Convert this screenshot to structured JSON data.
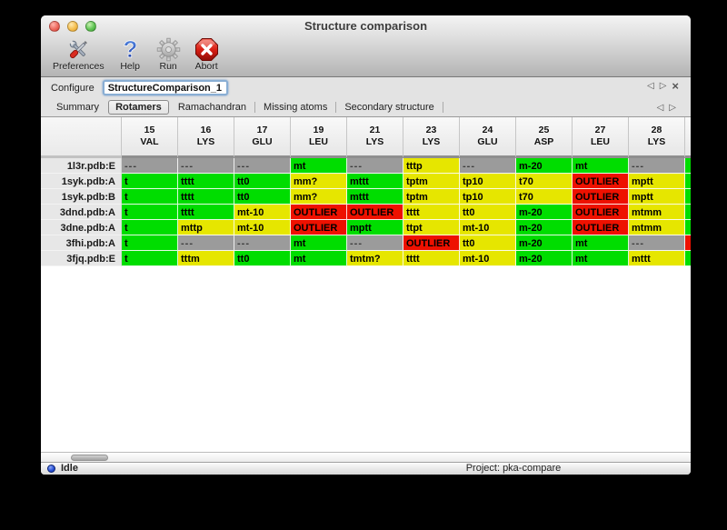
{
  "window": {
    "title": "Structure comparison"
  },
  "toolbar": {
    "items": [
      {
        "label": "Preferences",
        "icon": "tools-icon"
      },
      {
        "label": "Help",
        "icon": "question-icon"
      },
      {
        "label": "Run",
        "icon": "gear-icon"
      },
      {
        "label": "Abort",
        "icon": "abort-icon"
      }
    ]
  },
  "configure": {
    "label": "Configure",
    "value": "StructureComparison_1"
  },
  "tabs": {
    "items": [
      "Summary",
      "Rotamers",
      "Ramachandran",
      "Missing atoms",
      "Secondary structure"
    ],
    "selected": "Rotamers"
  },
  "table": {
    "colors": {
      "ok": "#00dd00",
      "warn": "#e6e600",
      "outlier": "#ee1100",
      "missing": "#9b9b9b"
    },
    "columns": [
      {
        "num": "15",
        "res": "VAL"
      },
      {
        "num": "16",
        "res": "LYS"
      },
      {
        "num": "17",
        "res": "GLU"
      },
      {
        "num": "19",
        "res": "LEU"
      },
      {
        "num": "21",
        "res": "LYS"
      },
      {
        "num": "23",
        "res": "LYS"
      },
      {
        "num": "24",
        "res": "GLU"
      },
      {
        "num": "25",
        "res": "ASP"
      },
      {
        "num": "27",
        "res": "LEU"
      },
      {
        "num": "28",
        "res": "LYS"
      }
    ],
    "rows": [
      {
        "label": "1l3r.pdb:E",
        "cells": [
          {
            "text": "---",
            "status": "missing"
          },
          {
            "text": "---",
            "status": "missing"
          },
          {
            "text": "---",
            "status": "missing"
          },
          {
            "text": "mt",
            "status": "ok"
          },
          {
            "text": "---",
            "status": "missing"
          },
          {
            "text": "tttp",
            "status": "warn"
          },
          {
            "text": "---",
            "status": "missing"
          },
          {
            "text": "m-20",
            "status": "ok"
          },
          {
            "text": "mt",
            "status": "ok"
          },
          {
            "text": "---",
            "status": "missing"
          }
        ]
      },
      {
        "label": "1syk.pdb:A",
        "cells": [
          {
            "text": "t",
            "status": "ok"
          },
          {
            "text": "tttt",
            "status": "ok"
          },
          {
            "text": "tt0",
            "status": "ok"
          },
          {
            "text": "mm?",
            "status": "warn"
          },
          {
            "text": "mttt",
            "status": "ok"
          },
          {
            "text": "tptm",
            "status": "warn"
          },
          {
            "text": "tp10",
            "status": "warn"
          },
          {
            "text": "t70",
            "status": "warn"
          },
          {
            "text": "OUTLIER",
            "status": "outlier"
          },
          {
            "text": "mptt",
            "status": "warn"
          }
        ]
      },
      {
        "label": "1syk.pdb:B",
        "cells": [
          {
            "text": "t",
            "status": "ok"
          },
          {
            "text": "tttt",
            "status": "ok"
          },
          {
            "text": "tt0",
            "status": "ok"
          },
          {
            "text": "mm?",
            "status": "warn"
          },
          {
            "text": "mttt",
            "status": "ok"
          },
          {
            "text": "tptm",
            "status": "warn"
          },
          {
            "text": "tp10",
            "status": "warn"
          },
          {
            "text": "t70",
            "status": "warn"
          },
          {
            "text": "OUTLIER",
            "status": "outlier"
          },
          {
            "text": "mptt",
            "status": "warn"
          }
        ]
      },
      {
        "label": "3dnd.pdb:A",
        "cells": [
          {
            "text": "t",
            "status": "ok"
          },
          {
            "text": "tttt",
            "status": "ok"
          },
          {
            "text": "mt-10",
            "status": "warn"
          },
          {
            "text": "OUTLIER",
            "status": "outlier"
          },
          {
            "text": "OUTLIER",
            "status": "outlier"
          },
          {
            "text": "tttt",
            "status": "warn"
          },
          {
            "text": "tt0",
            "status": "warn"
          },
          {
            "text": "m-20",
            "status": "ok"
          },
          {
            "text": "OUTLIER",
            "status": "outlier"
          },
          {
            "text": "mtmm",
            "status": "warn"
          }
        ]
      },
      {
        "label": "3dne.pdb:A",
        "cells": [
          {
            "text": "t",
            "status": "ok"
          },
          {
            "text": "mttp",
            "status": "warn"
          },
          {
            "text": "mt-10",
            "status": "warn"
          },
          {
            "text": "OUTLIER",
            "status": "outlier"
          },
          {
            "text": "mptt",
            "status": "ok"
          },
          {
            "text": "ttpt",
            "status": "warn"
          },
          {
            "text": "mt-10",
            "status": "warn"
          },
          {
            "text": "m-20",
            "status": "ok"
          },
          {
            "text": "OUTLIER",
            "status": "outlier"
          },
          {
            "text": "mtmm",
            "status": "warn"
          }
        ]
      },
      {
        "label": "3fhi.pdb:A",
        "cells": [
          {
            "text": "t",
            "status": "ok"
          },
          {
            "text": "---",
            "status": "missing"
          },
          {
            "text": "---",
            "status": "missing"
          },
          {
            "text": "mt",
            "status": "ok"
          },
          {
            "text": "---",
            "status": "missing"
          },
          {
            "text": "OUTLIER",
            "status": "outlier"
          },
          {
            "text": "tt0",
            "status": "warn"
          },
          {
            "text": "m-20",
            "status": "ok"
          },
          {
            "text": "mt",
            "status": "ok"
          },
          {
            "text": "---",
            "status": "missing"
          }
        ]
      },
      {
        "label": "3fjq.pdb:E",
        "cells": [
          {
            "text": "t",
            "status": "ok"
          },
          {
            "text": "tttm",
            "status": "warn"
          },
          {
            "text": "tt0",
            "status": "ok"
          },
          {
            "text": "mt",
            "status": "ok"
          },
          {
            "text": "tmtm?",
            "status": "warn"
          },
          {
            "text": "tttt",
            "status": "warn"
          },
          {
            "text": "mt-10",
            "status": "warn"
          },
          {
            "text": "m-20",
            "status": "ok"
          },
          {
            "text": "mt",
            "status": "ok"
          },
          {
            "text": "mttt",
            "status": "warn"
          }
        ]
      }
    ],
    "partial_column_statuses": [
      "ok",
      "ok",
      "ok",
      "ok",
      "ok",
      "outlier",
      "ok"
    ]
  },
  "status_bar": {
    "state": "Idle",
    "project": "Project: pka-compare"
  }
}
